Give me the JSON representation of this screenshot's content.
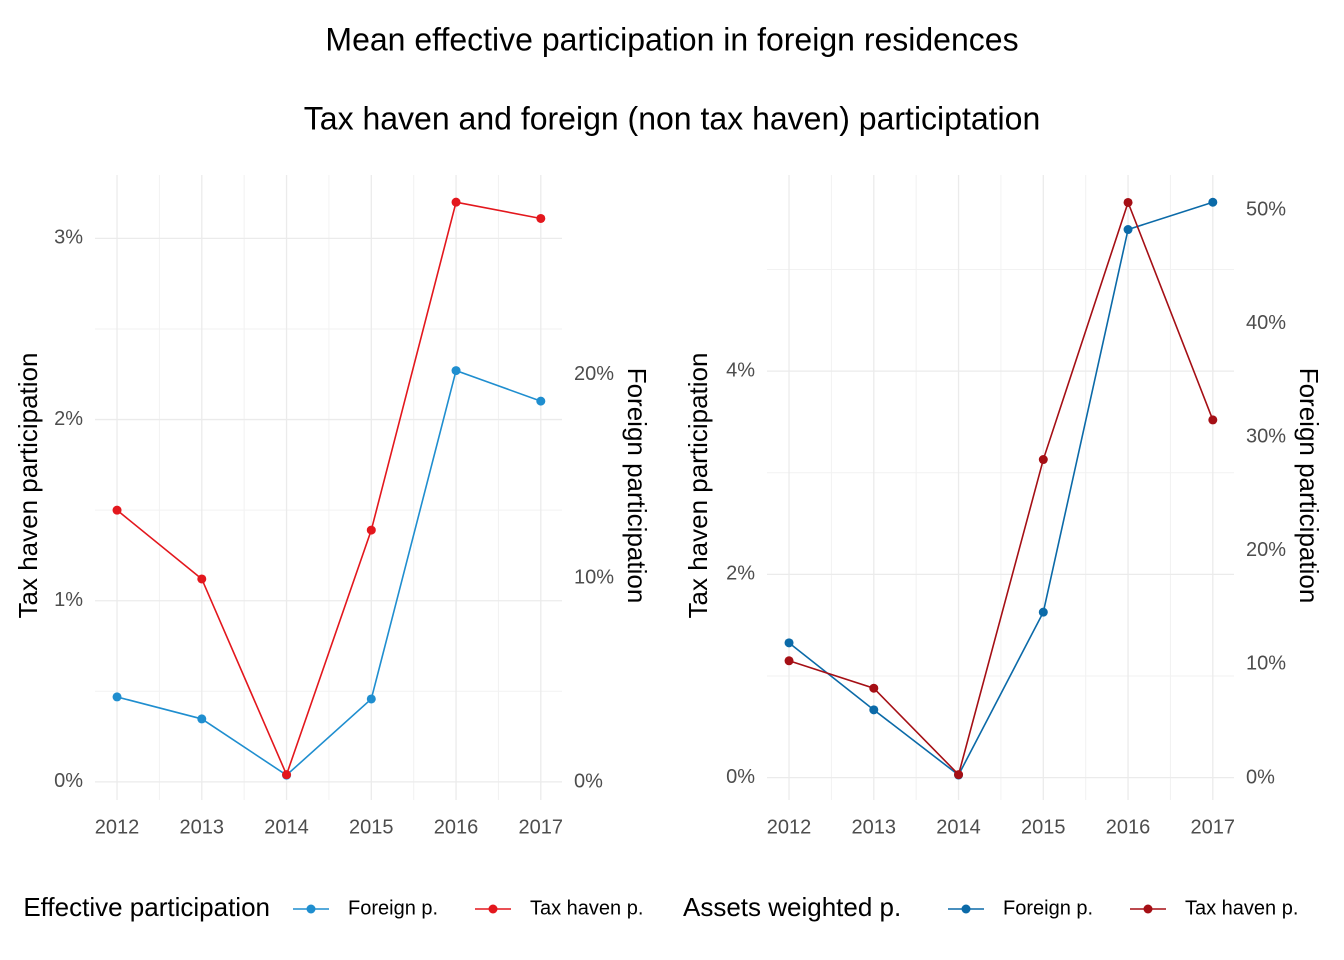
{
  "title": "Mean effective participation in foreign residences",
  "subtitle": "Tax haven and foreign (non tax haven) participtation",
  "chart_data": [
    {
      "type": "line",
      "ylabel": "Tax haven participation",
      "y2label": "Foreign participation",
      "legend_title": "Effective participation",
      "legend": "bottom",
      "grid": true,
      "x": [
        2012,
        2013,
        2014,
        2015,
        2016,
        2017
      ],
      "xlim": [
        2011.74,
        2017.25
      ],
      "xticks": [
        2012,
        2013,
        2014,
        2015,
        2016,
        2017
      ],
      "ylim": [
        -0.1,
        3.35
      ],
      "yticks": [
        {
          "value": 0,
          "label": "0%"
        },
        {
          "value": 1,
          "label": "1%"
        },
        {
          "value": 2,
          "label": "2%"
        },
        {
          "value": 3,
          "label": "3%"
        }
      ],
      "y2lim": [
        -0.88,
        29.8
      ],
      "y2ticks": [
        {
          "value": 0,
          "label": "0%"
        },
        {
          "value": 10,
          "label": "10%"
        },
        {
          "value": 20,
          "label": "20%"
        }
      ],
      "series": [
        {
          "name": "Foreign p.",
          "color": "#1f8ecf",
          "axis": "y2",
          "values": [
            4.18,
            3.1,
            0.34,
            4.08,
            20.2,
            18.7
          ]
        },
        {
          "name": "Tax haven p.",
          "color": "#e3171d",
          "values": [
            1.5,
            1.12,
            0.04,
            1.39,
            3.2,
            3.11
          ]
        }
      ]
    },
    {
      "type": "line",
      "ylabel": "Tax haven participation",
      "y2label": "Foreign participation",
      "legend_title": "Assets weighted p.",
      "legend": "bottom",
      "grid": true,
      "x": [
        2012,
        2013,
        2014,
        2015,
        2016,
        2017
      ],
      "xlim": [
        2011.74,
        2017.25
      ],
      "xticks": [
        2012,
        2013,
        2014,
        2015,
        2016,
        2017
      ],
      "ylim": [
        -0.22,
        5.93
      ],
      "yticks": [
        {
          "value": 0,
          "label": "0%"
        },
        {
          "value": 2,
          "label": "2%"
        },
        {
          "value": 4,
          "label": "4%"
        }
      ],
      "y2lim": [
        -1.94,
        53.1
      ],
      "y2ticks": [
        {
          "value": 0,
          "label": "0%"
        },
        {
          "value": 10,
          "label": "10%"
        },
        {
          "value": 20,
          "label": "20%"
        },
        {
          "value": 30,
          "label": "30%"
        },
        {
          "value": 40,
          "label": "40%"
        },
        {
          "value": 50,
          "label": "50%"
        }
      ],
      "series": [
        {
          "name": "Foreign p.",
          "color": "#0b6aa8",
          "axis": "y2",
          "values": [
            11.9,
            6.0,
            0.26,
            14.6,
            48.3,
            50.7
          ]
        },
        {
          "name": "Tax haven p.",
          "color": "#a50f15",
          "values": [
            1.15,
            0.88,
            0.03,
            3.13,
            5.66,
            3.52
          ]
        }
      ]
    }
  ]
}
